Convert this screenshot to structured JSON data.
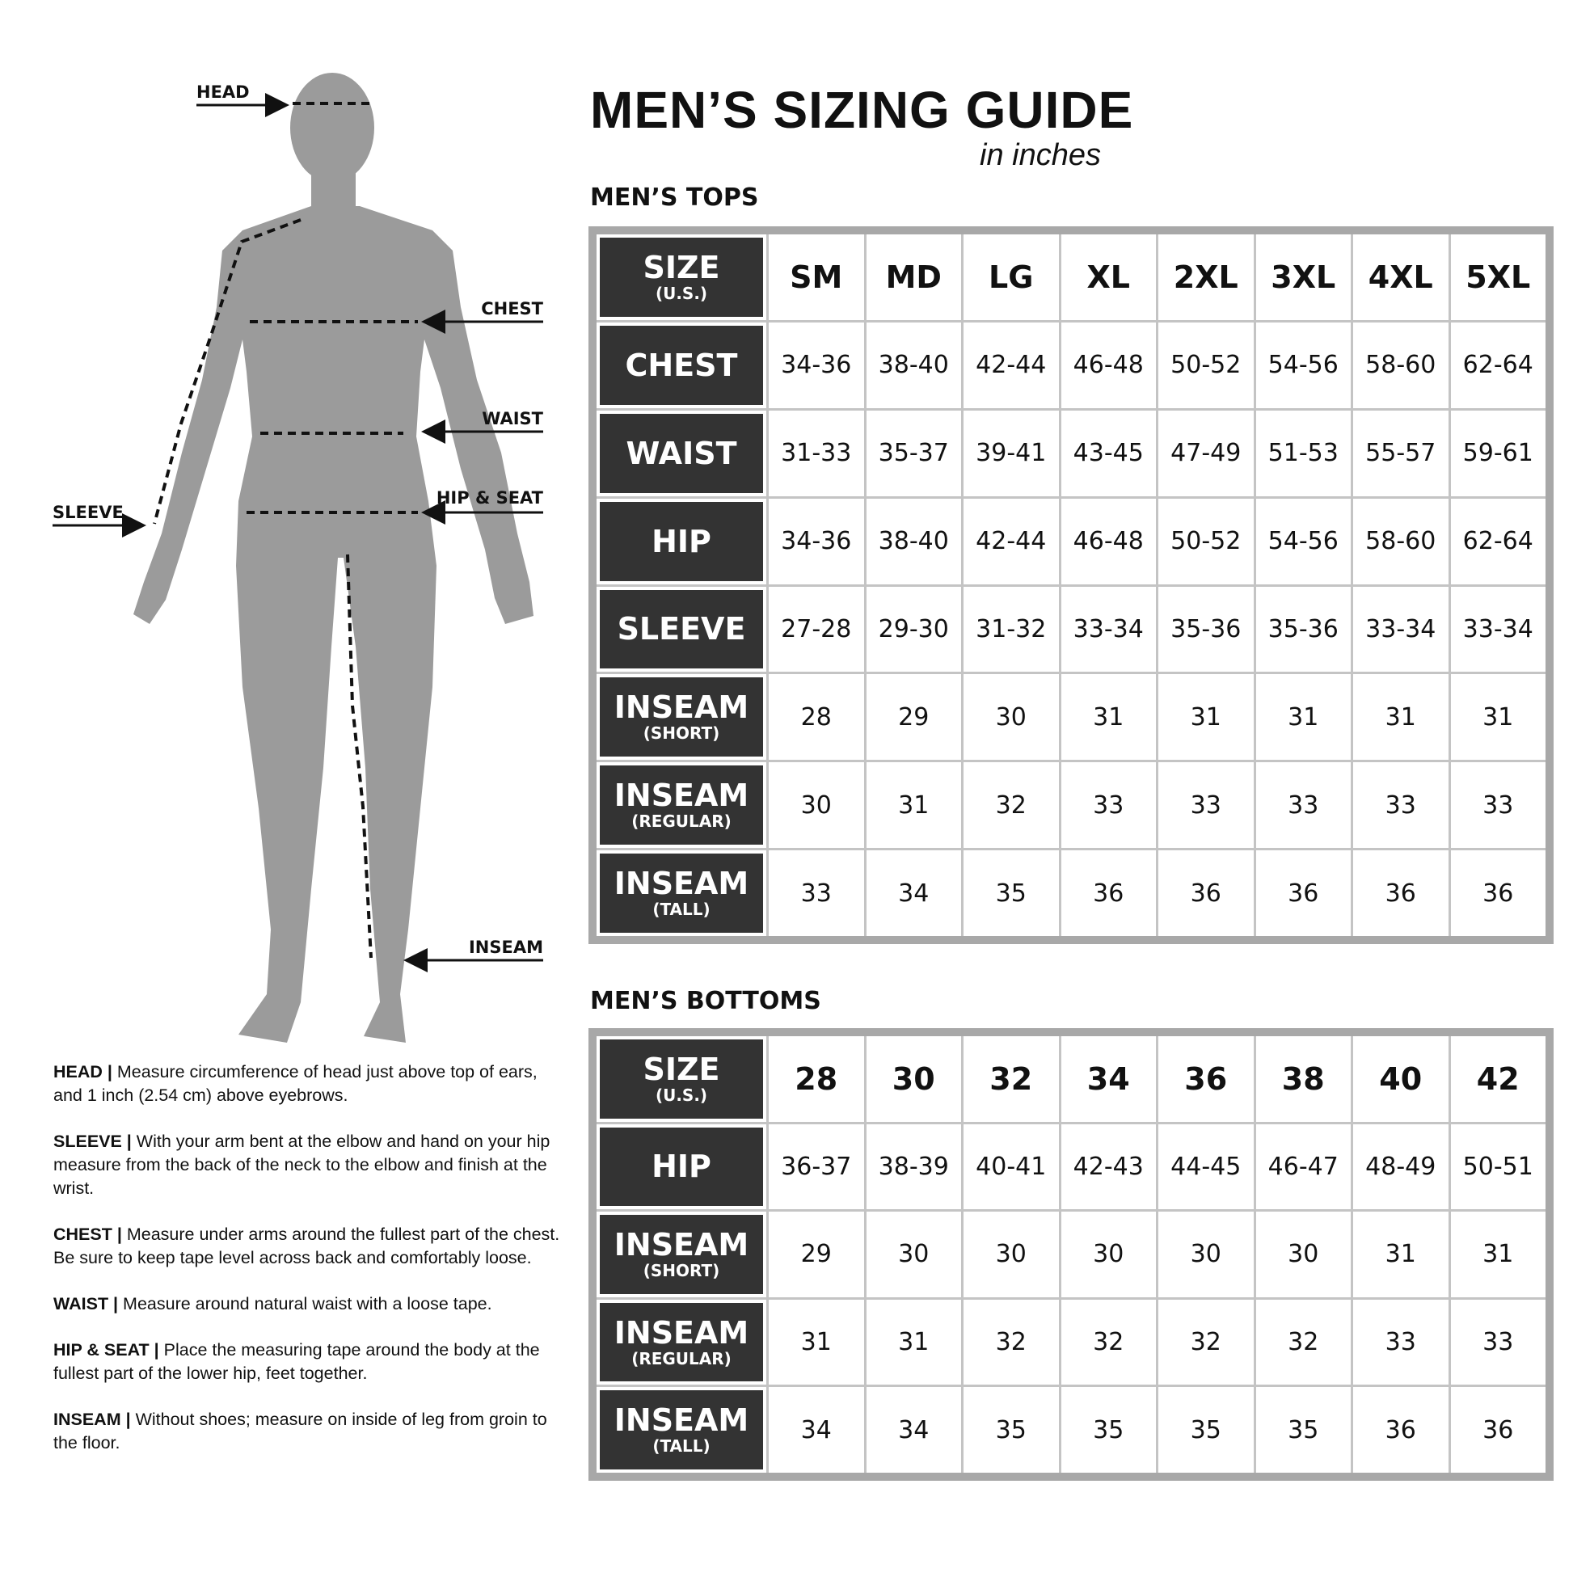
{
  "title": "MEN’S SIZING GUIDE",
  "subtitle": "in inches",
  "figure": {
    "labels": {
      "head": "HEAD",
      "chest": "CHEST",
      "waist": "WAIST",
      "hip": "HIP & SEAT",
      "sleeve": "SLEEVE",
      "inseam": "INSEAM"
    },
    "silhouette_color": "#9b9b9b"
  },
  "tops": {
    "heading": "MEN’S TOPS",
    "size_label": {
      "main": "SIZE",
      "sub": "(U.S.)"
    },
    "sizes": [
      "SM",
      "MD",
      "LG",
      "XL",
      "2XL",
      "3XL",
      "4XL",
      "5XL"
    ],
    "rows": [
      {
        "main": "CHEST",
        "sub": "",
        "values": [
          "34-36",
          "38-40",
          "42-44",
          "46-48",
          "50-52",
          "54-56",
          "58-60",
          "62-64"
        ]
      },
      {
        "main": "WAIST",
        "sub": "",
        "values": [
          "31-33",
          "35-37",
          "39-41",
          "43-45",
          "47-49",
          "51-53",
          "55-57",
          "59-61"
        ]
      },
      {
        "main": "HIP",
        "sub": "",
        "values": [
          "34-36",
          "38-40",
          "42-44",
          "46-48",
          "50-52",
          "54-56",
          "58-60",
          "62-64"
        ]
      },
      {
        "main": "SLEEVE",
        "sub": "",
        "values": [
          "27-28",
          "29-30",
          "31-32",
          "33-34",
          "35-36",
          "35-36",
          "33-34",
          "33-34"
        ]
      },
      {
        "main": "INSEAM",
        "sub": "(SHORT)",
        "values": [
          "28",
          "29",
          "30",
          "31",
          "31",
          "31",
          "31",
          "31"
        ]
      },
      {
        "main": "INSEAM",
        "sub": "(REGULAR)",
        "values": [
          "30",
          "31",
          "32",
          "33",
          "33",
          "33",
          "33",
          "33"
        ]
      },
      {
        "main": "INSEAM",
        "sub": "(TALL)",
        "values": [
          "33",
          "34",
          "35",
          "36",
          "36",
          "36",
          "36",
          "36"
        ]
      }
    ]
  },
  "bottoms": {
    "heading": "MEN’S BOTTOMS",
    "size_label": {
      "main": "SIZE",
      "sub": "(U.S.)"
    },
    "sizes": [
      "28",
      "30",
      "32",
      "34",
      "36",
      "38",
      "40",
      "42"
    ],
    "rows": [
      {
        "main": "HIP",
        "sub": "",
        "values": [
          "36-37",
          "38-39",
          "40-41",
          "42-43",
          "44-45",
          "46-47",
          "48-49",
          "50-51"
        ]
      },
      {
        "main": "INSEAM",
        "sub": "(SHORT)",
        "values": [
          "29",
          "30",
          "30",
          "30",
          "30",
          "30",
          "31",
          "31"
        ]
      },
      {
        "main": "INSEAM",
        "sub": "(REGULAR)",
        "values": [
          "31",
          "31",
          "32",
          "32",
          "32",
          "32",
          "33",
          "33"
        ]
      },
      {
        "main": "INSEAM",
        "sub": "(TALL)",
        "values": [
          "34",
          "34",
          "35",
          "35",
          "35",
          "35",
          "36",
          "36"
        ]
      }
    ]
  },
  "instructions": [
    {
      "term": "HEAD |",
      "text": " Measure circumference of head just above top of ears, and 1 inch (2.54 cm) above eyebrows."
    },
    {
      "term": "SLEEVE |",
      "text": " With your arm bent at the elbow and hand on your hip measure from the back of the neck to the elbow and finish at the wrist."
    },
    {
      "term": "CHEST |",
      "text": " Measure under arms around the fullest part of the chest. Be sure to keep tape level across back and comfortably loose."
    },
    {
      "term": "WAIST |",
      "text": " Measure around natural waist with a loose tape."
    },
    {
      "term": "HIP & SEAT |",
      "text": " Place the measuring tape around the body at the fullest part of the lower hip, feet together."
    },
    {
      "term": "INSEAM |",
      "text": " Without shoes; measure on inside of leg from groin to the floor."
    }
  ]
}
